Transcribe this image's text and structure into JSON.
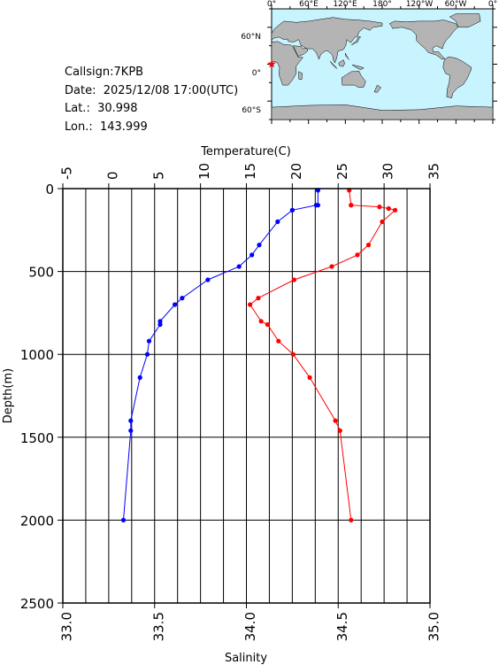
{
  "station": {
    "callsign": "Callsign:7KPB",
    "date": "Date:  2025/12/08 17:00(UTC)",
    "lat": "Lat.:  30.998",
    "lon": "Lon.:  143.999"
  },
  "map": {
    "lon_labels": [
      "0°",
      "60°E",
      "120°E",
      "180°",
      "120°W",
      "60°W",
      "0°"
    ],
    "lat_labels": [
      "60°N",
      "0°",
      "60°S"
    ],
    "ocean_color": "#c8f4ff",
    "land_color": "#b4b4b4",
    "marker_color": "#ff0000",
    "marker_icon": "star-icon"
  },
  "chart_data": {
    "type": "line",
    "ylabel": "Depth(m)",
    "y_ticks": [
      0,
      500,
      1000,
      1500,
      2000,
      2500
    ],
    "ylim": [
      0,
      2500
    ],
    "y_inverted": true,
    "temperature_axis": {
      "label": "Temperature(C)",
      "position": "top",
      "ticks": [
        -5,
        0,
        5,
        10,
        15,
        20,
        25,
        30,
        35
      ],
      "range": [
        -5,
        35
      ]
    },
    "salinity_axis": {
      "label": "Salinity",
      "position": "bottom",
      "ticks": [
        "33.0",
        "33.5",
        "34.0",
        "34.5",
        "35.0"
      ],
      "range": [
        33.0,
        35.0
      ]
    },
    "grid": true,
    "series": [
      {
        "axis": "temperature",
        "color": "#ff0000",
        "depth": [
          10,
          100,
          100,
          110,
          120,
          130,
          200,
          340,
          400,
          470,
          550,
          660,
          700,
          800,
          820,
          920,
          1000,
          1140,
          1400,
          1460,
          2000
        ],
        "values": [
          26.2,
          26.4,
          26.4,
          29.5,
          30.5,
          31.2,
          29.8,
          28.3,
          27.1,
          24.3,
          20.2,
          16.3,
          15.4,
          16.6,
          17.3,
          18.5,
          20.1,
          21.9,
          24.7,
          25.2,
          26.4
        ]
      },
      {
        "axis": "salinity",
        "color": "#0000ff",
        "depth": [
          10,
          100,
          100,
          130,
          130,
          200,
          340,
          400,
          470,
          550,
          660,
          700,
          800,
          820,
          920,
          1000,
          1140,
          1400,
          1460,
          2000
        ],
        "values": [
          34.39,
          34.39,
          34.38,
          34.25,
          34.25,
          34.17,
          34.07,
          34.03,
          33.96,
          33.79,
          33.65,
          33.61,
          33.53,
          33.53,
          33.47,
          33.46,
          33.42,
          33.37,
          33.37,
          33.33
        ]
      }
    ]
  }
}
